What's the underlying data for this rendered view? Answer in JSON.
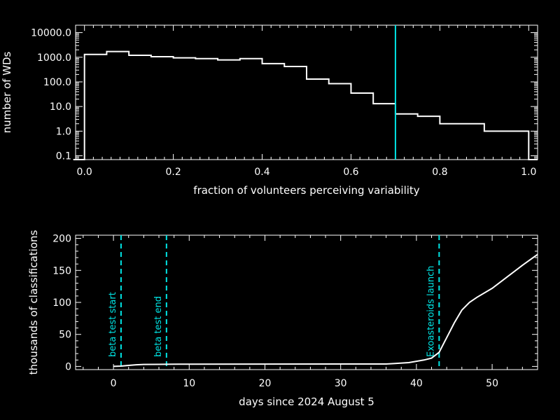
{
  "colors": {
    "background": "#000000",
    "foreground": "#ffffff",
    "accent": "#00e5e5"
  },
  "chart_data": [
    {
      "type": "line",
      "style": "histogram-step",
      "y_scale": "log",
      "xlabel": "fraction of volunteers perceiving variability",
      "ylabel": "number of WDs",
      "xlim": [
        -0.02,
        1.02
      ],
      "ylim": [
        0.07,
        20000
      ],
      "x_ticks": [
        "0.0",
        "0.2",
        "0.4",
        "0.6",
        "0.8",
        "1.0"
      ],
      "y_ticks": [
        "0.1",
        "1.0",
        "10.0",
        "100.0",
        "1000.0",
        "10000.0"
      ],
      "bin_edges": [
        0.0,
        0.05,
        0.1,
        0.15,
        0.2,
        0.25,
        0.3,
        0.35,
        0.4,
        0.45,
        0.5,
        0.55,
        0.6,
        0.65,
        0.7,
        0.75,
        0.8,
        0.9,
        1.0
      ],
      "counts": [
        1300,
        1700,
        1200,
        1050,
        950,
        880,
        780,
        880,
        550,
        420,
        130,
        85,
        35,
        13,
        5,
        4,
        2,
        1
      ],
      "vertical_line": {
        "x": 0.7,
        "color": "#00e5e5"
      }
    },
    {
      "type": "line",
      "xlabel": "days since 2024 August 5",
      "ylabel": "thousands of classifications",
      "xlim": [
        -5,
        56
      ],
      "ylim": [
        -5,
        205
      ],
      "x_ticks": [
        "0",
        "10",
        "20",
        "30",
        "40",
        "50"
      ],
      "y_ticks": [
        "0",
        "50",
        "100",
        "150",
        "200"
      ],
      "series": [
        {
          "x": [
            0,
            1,
            2,
            3,
            4,
            6,
            7,
            10,
            20,
            30,
            36,
            37,
            39,
            41,
            42,
            43,
            44,
            45,
            46,
            47,
            48,
            50,
            52,
            54,
            56
          ],
          "y": [
            0,
            0.5,
            1.5,
            2.5,
            3,
            3.2,
            3.4,
            3.5,
            3.6,
            3.7,
            3.8,
            4.5,
            6,
            10,
            13,
            22,
            45,
            68,
            88,
            100,
            108,
            122,
            140,
            158,
            175
          ]
        }
      ],
      "annotations": [
        {
          "x": 1,
          "label": "beta test start"
        },
        {
          "x": 7,
          "label": "beta test end"
        },
        {
          "x": 43,
          "label": "Exoasteroids launch"
        }
      ]
    }
  ]
}
